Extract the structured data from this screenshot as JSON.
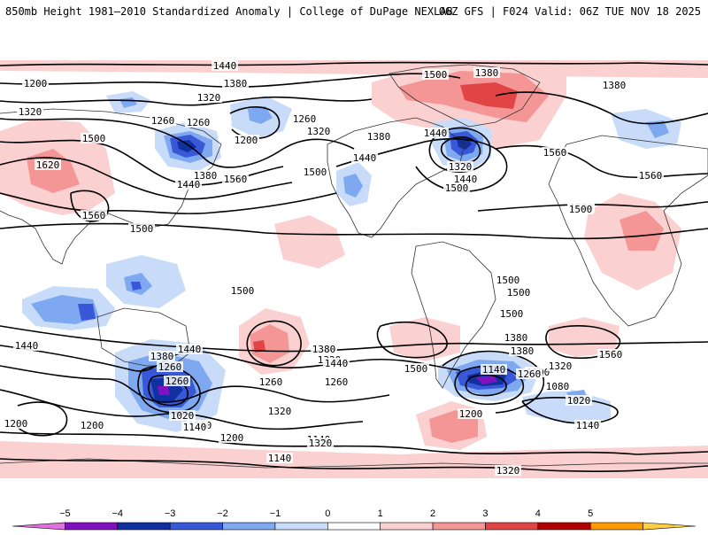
{
  "header": {
    "title": "850mb Height 1981—2010 Standardized Anomaly | College of DuPage NEXLAB",
    "run_info": "06Z GFS | F024 Valid: 06Z TUE NOV 18 2025"
  },
  "contour_labels": [
    "1440",
    "1200",
    "1380",
    "1320",
    "1320",
    "1260",
    "1260",
    "1500",
    "1200",
    "1620",
    "1560",
    "1380",
    "1260",
    "1320",
    "1380",
    "1440",
    "1500",
    "1560",
    "1440",
    "1500",
    "1380",
    "1440",
    "1320",
    "1500",
    "1440",
    "1560",
    "1380",
    "1500",
    "1560",
    "1500",
    "1500",
    "1500",
    "1500",
    "1500",
    "1500",
    "1440",
    "1380",
    "1440",
    "1380",
    "1260",
    "1260",
    "1320",
    "1020",
    "1200",
    "1140",
    "1200",
    "1140",
    "1320",
    "1200",
    "1200",
    "1380",
    "1320",
    "1440",
    "1500",
    "1380",
    "1200",
    "1140",
    "1260",
    "1320",
    "1080",
    "1020",
    "1140",
    "1560",
    "1260",
    "1260",
    "1200",
    "1320",
    "1140"
  ],
  "colorbar": {
    "ticks": [
      "−5",
      "−4",
      "−3",
      "−2",
      "−1",
      "0",
      "1",
      "2",
      "3",
      "4",
      "5"
    ],
    "colors": [
      "#e070e0",
      "#8010c0",
      "#1030a0",
      "#3858d8",
      "#7ea8f0",
      "#c8dcfa",
      "#ffffff",
      "#fbd0d0",
      "#f49696",
      "#e04444",
      "#b00000",
      "#ff9a00",
      "#ffcf40"
    ]
  }
}
